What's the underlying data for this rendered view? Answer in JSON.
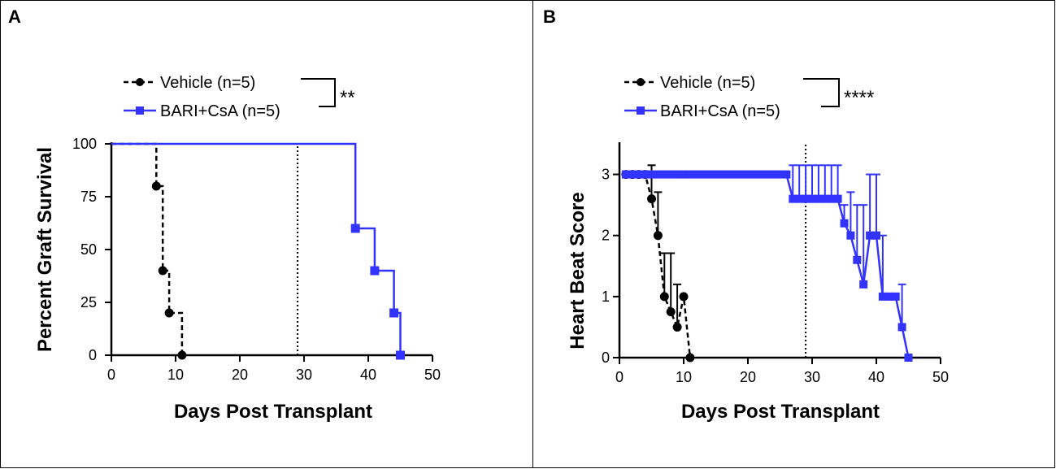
{
  "colors": {
    "vehicle": "#000000",
    "bari": "#3333ff",
    "frame": "#000000"
  },
  "panels": {
    "a": {
      "letter": "A"
    },
    "b": {
      "letter": "B"
    }
  },
  "legend": {
    "vehicle": "Vehicle (n=5)",
    "bari": "BARI+CsA (n=5)",
    "sig_a": "**",
    "sig_b": "****"
  },
  "chart_data": [
    {
      "id": "A",
      "type": "line",
      "subtype": "kaplan-meier step",
      "title": "",
      "xlabel": "Days Post Transplant",
      "ylabel": "Percent Graft Survival",
      "xlim": [
        0,
        50
      ],
      "ylim": [
        0,
        100
      ],
      "xticks": [
        0,
        10,
        20,
        30,
        40,
        50
      ],
      "yticks": [
        0,
        25,
        50,
        75,
        100
      ],
      "reference_line_x": 29,
      "series": [
        {
          "name": "Vehicle (n=5)",
          "style": "dashed",
          "marker": "circle",
          "x": [
            0,
            7,
            8,
            9,
            11
          ],
          "y": [
            100,
            80,
            40,
            20,
            0
          ],
          "marker_points": [
            [
              7,
              80
            ],
            [
              8,
              40
            ],
            [
              9,
              20
            ],
            [
              11,
              0
            ]
          ]
        },
        {
          "name": "BARI+CsA (n=5)",
          "style": "solid",
          "marker": "square",
          "x": [
            0,
            38,
            41,
            44,
            45
          ],
          "y": [
            100,
            60,
            40,
            20,
            0
          ],
          "marker_points": [
            [
              38,
              60
            ],
            [
              41,
              40
            ],
            [
              44,
              20
            ],
            [
              45,
              0
            ]
          ]
        }
      ],
      "significance": "**"
    },
    {
      "id": "B",
      "type": "line",
      "title": "",
      "xlabel": "Days Post Transplant",
      "ylabel": "Heart Beat Score",
      "xlim": [
        0,
        50
      ],
      "ylim": [
        0,
        3.5
      ],
      "xticks": [
        0,
        10,
        20,
        30,
        40,
        50
      ],
      "yticks": [
        0,
        1,
        2,
        3
      ],
      "reference_line_x": 29,
      "series": [
        {
          "name": "Vehicle (n=5)",
          "style": "dashed",
          "marker": "circle",
          "x": [
            1,
            2,
            3,
            4,
            5,
            6,
            7,
            8,
            9,
            10,
            11
          ],
          "y": [
            3,
            3,
            3,
            3,
            2.6,
            2,
            1,
            0.75,
            0.5,
            1,
            0
          ],
          "error_up": [
            0,
            0,
            0,
            0,
            0.55,
            0.71,
            0.71,
            0.96,
            0.7,
            0,
            0
          ]
        },
        {
          "name": "BARI+CsA (n=5)",
          "style": "solid",
          "marker": "square",
          "x": [
            1,
            2,
            3,
            4,
            5,
            6,
            7,
            8,
            9,
            10,
            11,
            12,
            13,
            14,
            15,
            16,
            17,
            18,
            19,
            20,
            21,
            22,
            23,
            24,
            25,
            26,
            27,
            28,
            29,
            30,
            31,
            32,
            33,
            34,
            35,
            36,
            37,
            38,
            39,
            40,
            41,
            42,
            43,
            44,
            45
          ],
          "y": [
            3,
            3,
            3,
            3,
            3,
            3,
            3,
            3,
            3,
            3,
            3,
            3,
            3,
            3,
            3,
            3,
            3,
            3,
            3,
            3,
            3,
            3,
            3,
            3,
            3,
            3,
            2.6,
            2.6,
            2.6,
            2.6,
            2.6,
            2.6,
            2.6,
            2.6,
            2.2,
            2,
            1.6,
            1.2,
            2,
            2,
            1,
            1,
            1,
            0.5,
            0
          ],
          "error_up": [
            0,
            0,
            0,
            0,
            0,
            0,
            0,
            0,
            0,
            0,
            0,
            0,
            0,
            0,
            0,
            0,
            0,
            0,
            0,
            0,
            0,
            0,
            0,
            0,
            0,
            0,
            0.55,
            0.55,
            0.55,
            0.55,
            0.55,
            0.55,
            0.55,
            0.55,
            0.3,
            0.71,
            0.9,
            1.3,
            1,
            1,
            1,
            0,
            0,
            0.7,
            0
          ]
        }
      ],
      "significance": "****"
    }
  ]
}
